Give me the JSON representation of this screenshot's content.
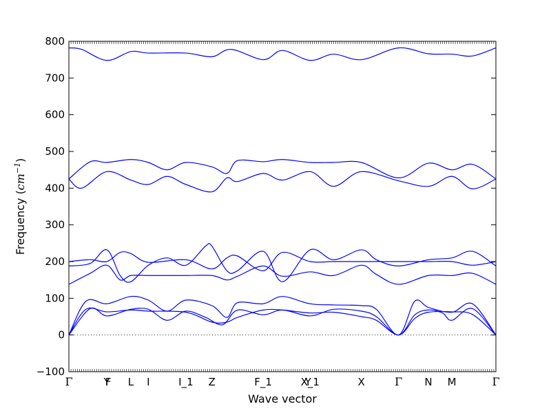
{
  "chart_data": {
    "type": "line",
    "xlabel": "Wave vector",
    "ylabel_prefix": "Frequency (",
    "ylabel_unit": "cm",
    "ylabel_exp": "−1",
    "ylabel_suffix": ")",
    "ylim": [
      -100,
      800
    ],
    "yticks": [
      -100,
      0,
      100,
      200,
      300,
      400,
      500,
      600,
      700,
      800
    ],
    "grid": false,
    "series_color": "#0000ff",
    "zero_line": true,
    "high_symmetry_points": [
      {
        "label": "Γ",
        "x": 0.0
      },
      {
        "label": "Y",
        "x": 0.089
      },
      {
        "label": "F",
        "x": 0.092
      },
      {
        "label": "L",
        "x": 0.145
      },
      {
        "label": "I",
        "x": 0.186
      },
      {
        "label": "I_1",
        "x": 0.274
      },
      {
        "label": "Z",
        "x": 0.335
      },
      {
        "label": "F_1",
        "x": 0.455
      },
      {
        "label": "Y",
        "x": 0.56
      },
      {
        "label": "X_1",
        "x": 0.565
      },
      {
        "label": "X",
        "x": 0.685
      },
      {
        "label": "Γ",
        "x": 0.772
      },
      {
        "label": "N",
        "x": 0.842
      },
      {
        "label": "M",
        "x": 0.897
      },
      {
        "label": "Γ",
        "x": 1.0
      }
    ],
    "bands": [
      {
        "x": [
          0,
          0.04,
          0.089,
          0.145,
          0.186,
          0.274,
          0.335,
          0.37,
          0.395,
          0.455,
          0.5,
          0.565,
          0.62,
          0.685,
          0.72,
          0.772,
          0.81,
          0.842,
          0.897,
          0.945,
          1.0
        ],
        "y": [
          0,
          70,
          63,
          68,
          65,
          62,
          35,
          35,
          48,
          68,
          68,
          60,
          62,
          50,
          40,
          0,
          45,
          62,
          63,
          56,
          0
        ]
      },
      {
        "x": [
          0,
          0.05,
          0.089,
          0.145,
          0.186,
          0.23,
          0.274,
          0.32,
          0.36,
          0.395,
          0.455,
          0.5,
          0.565,
          0.62,
          0.685,
          0.72,
          0.772,
          0.81,
          0.842,
          0.875,
          0.897,
          0.945,
          1.0
        ],
        "y": [
          0,
          72,
          52,
          70,
          70,
          40,
          65,
          48,
          28,
          68,
          55,
          68,
          52,
          70,
          65,
          50,
          0,
          55,
          68,
          60,
          40,
          72,
          0
        ]
      },
      {
        "x": [
          0,
          0.04,
          0.089,
          0.145,
          0.186,
          0.23,
          0.274,
          0.335,
          0.37,
          0.395,
          0.455,
          0.5,
          0.565,
          0.62,
          0.685,
          0.72,
          0.772,
          0.81,
          0.842,
          0.897,
          0.945,
          1.0
        ],
        "y": [
          0,
          92,
          85,
          105,
          95,
          65,
          95,
          80,
          48,
          88,
          85,
          105,
          85,
          82,
          80,
          70,
          0,
          92,
          75,
          62,
          85,
          0
        ]
      },
      {
        "x": [
          0,
          0.05,
          0.089,
          0.12,
          0.145,
          0.186,
          0.23,
          0.274,
          0.335,
          0.37,
          0.395,
          0.455,
          0.5,
          0.565,
          0.62,
          0.685,
          0.72,
          0.772,
          0.842,
          0.897,
          0.945,
          1.0
        ],
        "y": [
          138,
          168,
          190,
          150,
          162,
          162,
          162,
          162,
          162,
          150,
          160,
          188,
          160,
          172,
          162,
          190,
          165,
          138,
          162,
          162,
          168,
          138
        ]
      },
      {
        "x": [
          0,
          0.05,
          0.089,
          0.12,
          0.145,
          0.186,
          0.23,
          0.274,
          0.32,
          0.335,
          0.37,
          0.395,
          0.455,
          0.5,
          0.565,
          0.62,
          0.685,
          0.72,
          0.772,
          0.842,
          0.897,
          0.945,
          1.0
        ],
        "y": [
          188,
          195,
          232,
          162,
          145,
          190,
          210,
          190,
          242,
          242,
          175,
          175,
          228,
          145,
          232,
          205,
          232,
          205,
          188,
          205,
          210,
          228,
          188
        ]
      },
      {
        "x": [
          0,
          0.05,
          0.089,
          0.12,
          0.145,
          0.186,
          0.274,
          0.335,
          0.37,
          0.395,
          0.455,
          0.5,
          0.565,
          0.62,
          0.685,
          0.772,
          0.842,
          0.897,
          0.945,
          1.0
        ],
        "y": [
          200,
          205,
          200,
          225,
          222,
          198,
          205,
          180,
          210,
          215,
          175,
          225,
          200,
          200,
          200,
          200,
          200,
          200,
          190,
          200
        ]
      },
      {
        "x": [
          0,
          0.03,
          0.089,
          0.145,
          0.186,
          0.23,
          0.274,
          0.335,
          0.37,
          0.395,
          0.455,
          0.5,
          0.565,
          0.62,
          0.685,
          0.772,
          0.842,
          0.897,
          0.945,
          1.0
        ],
        "y": [
          425,
          400,
          445,
          422,
          410,
          432,
          410,
          390,
          428,
          418,
          440,
          422,
          445,
          405,
          445,
          420,
          405,
          432,
          398,
          425
        ]
      },
      {
        "x": [
          0,
          0.05,
          0.089,
          0.145,
          0.186,
          0.23,
          0.274,
          0.335,
          0.37,
          0.395,
          0.455,
          0.5,
          0.565,
          0.62,
          0.685,
          0.772,
          0.842,
          0.897,
          0.945,
          1.0
        ],
        "y": [
          425,
          472,
          470,
          478,
          470,
          450,
          470,
          458,
          440,
          475,
          472,
          478,
          470,
          470,
          470,
          428,
          468,
          450,
          465,
          425
        ]
      },
      {
        "x": [
          0,
          0.03,
          0.089,
          0.145,
          0.186,
          0.274,
          0.335,
          0.38,
          0.455,
          0.5,
          0.565,
          0.62,
          0.685,
          0.772,
          0.842,
          0.897,
          0.945,
          1.0
        ],
        "y": [
          782,
          778,
          748,
          772,
          768,
          768,
          758,
          778,
          750,
          775,
          748,
          765,
          750,
          782,
          766,
          765,
          760,
          782
        ]
      }
    ]
  }
}
